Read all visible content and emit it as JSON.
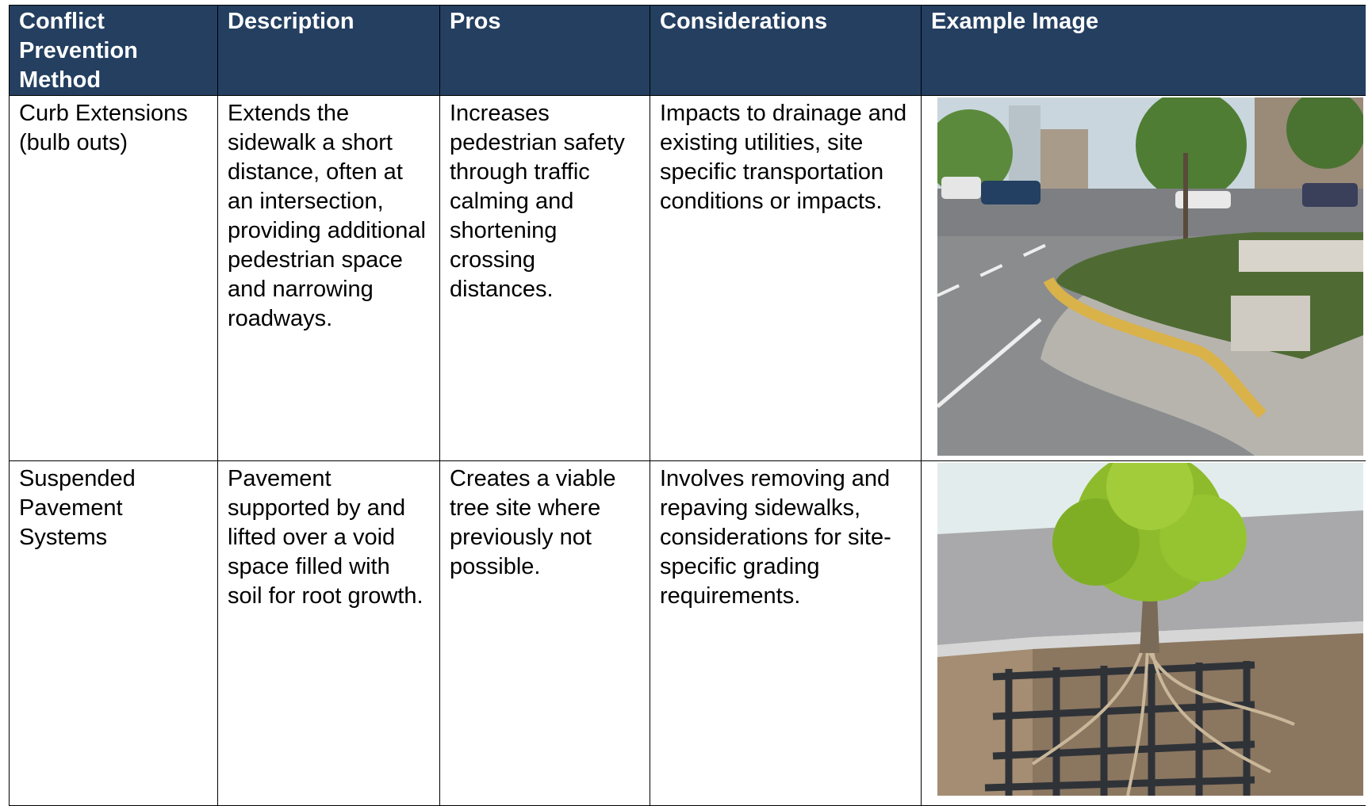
{
  "table": {
    "header": [
      "Conflict Prevention Method",
      "Description",
      "Pros",
      "Considerations",
      "Example Image"
    ],
    "rows": [
      [
        "Curb Extensions (bulb outs)",
        "Extends the sidewalk a short distance, often at an intersection, providing additional pedestrian space and narrowing roadways.",
        "Increases pedestrian safety through traffic calming and shortening crossing distances.",
        "Impacts to drainage and existing utilities, site specific transportation conditions or impacts."
      ],
      [
        "Suspended Pavement Systems",
        "Pavement supported by and lifted over a void space filled with soil for root growth.",
        "Creates a viable tree site where previously not possible.",
        "Involves removing and repaving sidewalks, considerations for site-specific grading requirements."
      ]
    ]
  }
}
